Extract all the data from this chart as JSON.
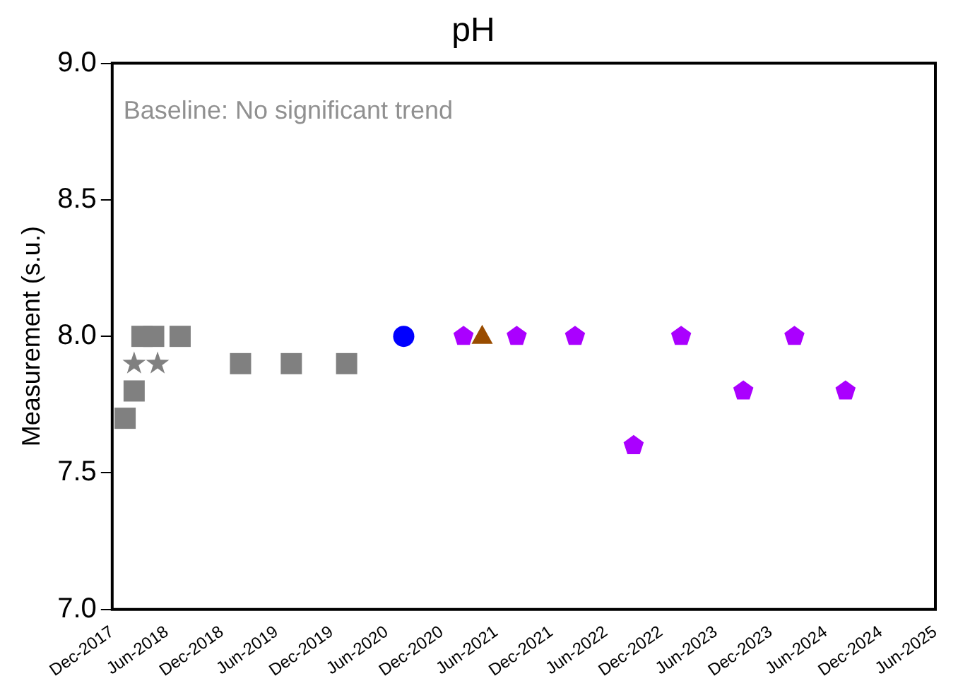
{
  "chart_data": {
    "type": "scatter",
    "title": "pH",
    "ylabel": "Measurement (s.u.)",
    "annotations": [
      "Baseline: No significant trend"
    ],
    "xlim": [
      "2017-12-01",
      "2025-06-01"
    ],
    "xticks": [
      {
        "value": "2017-12-01",
        "label": "Dec-2017"
      },
      {
        "value": "2018-06-01",
        "label": "Jun-2018"
      },
      {
        "value": "2018-12-01",
        "label": "Dec-2018"
      },
      {
        "value": "2019-06-01",
        "label": "Jun-2019"
      },
      {
        "value": "2019-12-01",
        "label": "Dec-2019"
      },
      {
        "value": "2020-06-01",
        "label": "Jun-2020"
      },
      {
        "value": "2020-12-01",
        "label": "Dec-2020"
      },
      {
        "value": "2021-06-01",
        "label": "Jun-2021"
      },
      {
        "value": "2021-12-01",
        "label": "Dec-2021"
      },
      {
        "value": "2022-06-01",
        "label": "Jun-2022"
      },
      {
        "value": "2022-12-01",
        "label": "Dec-2022"
      },
      {
        "value": "2023-06-01",
        "label": "Jun-2023"
      },
      {
        "value": "2023-12-01",
        "label": "Dec-2023"
      },
      {
        "value": "2024-06-01",
        "label": "Jun-2024"
      },
      {
        "value": "2024-12-01",
        "label": "Dec-2024"
      },
      {
        "value": "2025-06-01",
        "label": "Jun-2025"
      }
    ],
    "ylim": [
      7,
      9
    ],
    "yticks": [
      {
        "value": 7,
        "label": "7.0"
      },
      {
        "value": 7.5,
        "label": "7.5"
      },
      {
        "value": 8,
        "label": "8.0"
      },
      {
        "value": 8.5,
        "label": "8.5"
      },
      {
        "value": 9,
        "label": "9.0"
      }
    ],
    "grid": false,
    "legend": false,
    "series": [
      {
        "color": "#808080",
        "marker": "square",
        "x": [
          "2018-01-13",
          "2018-02-12",
          "2018-03-10",
          "2018-04-18",
          "2018-07-15",
          "2019-02-01",
          "2019-07-20",
          "2020-01-20"
        ],
        "values": [
          7.7,
          7.8,
          8.0,
          8.0,
          8.0,
          7.9,
          7.9,
          7.9
        ]
      },
      {
        "color": "#808080",
        "marker": "star",
        "x": [
          "2018-02-12",
          "2018-05-01"
        ],
        "values": [
          7.9,
          7.9
        ]
      },
      {
        "color": "#0000ff",
        "marker": "circle",
        "x": [
          "2020-07-28"
        ],
        "values": [
          8.0
        ]
      },
      {
        "color": "#aa00ff",
        "x": [
          "2021-02-12",
          "2021-08-08",
          "2022-02-18",
          "2022-09-01",
          "2023-02-06",
          "2023-09-01",
          "2024-02-18",
          "2024-08-06"
        ],
        "values": [
          8.0,
          8.0,
          8.0,
          7.6,
          8.0,
          7.8,
          8.0,
          7.8
        ]
      },
      {
        "color": "#994c00",
        "marker": "triangle",
        "x": [
          "2021-04-15"
        ],
        "values": [
          8.0
        ]
      }
    ]
  }
}
